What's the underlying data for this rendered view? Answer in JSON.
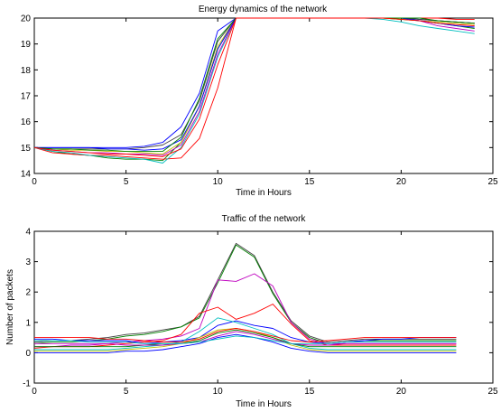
{
  "chart_data": [
    {
      "type": "line",
      "title": "Energy dynamics of the network",
      "xlabel": "Time in Hours",
      "ylabel": "",
      "xlim": [
        0,
        25
      ],
      "ylim": [
        14,
        20
      ],
      "xticks": [
        0,
        5,
        10,
        15,
        20,
        25
      ],
      "yticks": [
        14,
        15,
        16,
        17,
        18,
        19,
        20
      ],
      "grid": false,
      "legend": "none",
      "x": [
        0,
        1,
        2,
        3,
        4,
        5,
        6,
        7,
        8,
        9,
        10,
        11,
        12,
        13,
        14,
        15,
        16,
        17,
        18,
        19,
        20,
        21,
        22,
        23,
        24
      ],
      "series": [
        {
          "color": "#0000ff",
          "values": [
            15,
            15,
            15,
            15,
            15,
            15,
            15.05,
            15.2,
            15.8,
            17.1,
            19.5,
            20,
            20,
            20,
            20,
            20,
            20,
            20,
            20,
            20,
            20,
            19.95,
            19.9,
            19.85,
            19.8
          ]
        },
        {
          "color": "#008000",
          "values": [
            15,
            14.85,
            14.75,
            14.7,
            14.6,
            14.55,
            14.55,
            14.5,
            15.2,
            16.6,
            18.8,
            20,
            20,
            20,
            20,
            20,
            20,
            20,
            20,
            20,
            19.95,
            19.9,
            19.8,
            19.7,
            19.6
          ]
        },
        {
          "color": "#ff0000",
          "values": [
            15,
            14.8,
            14.75,
            14.7,
            14.7,
            14.65,
            14.6,
            14.55,
            14.6,
            15.35,
            17.3,
            20,
            20,
            20,
            20,
            20,
            20,
            20,
            20,
            20,
            20,
            20,
            20,
            19.95,
            19.95
          ]
        },
        {
          "color": "#00bfbf",
          "values": [
            15,
            14.85,
            14.8,
            14.7,
            14.65,
            14.6,
            14.55,
            14.4,
            15.0,
            16.3,
            18.5,
            20,
            20,
            20,
            20,
            20,
            20,
            20,
            20,
            19.95,
            19.85,
            19.7,
            19.6,
            19.5,
            19.4
          ]
        },
        {
          "color": "#bf00bf",
          "values": [
            15,
            14.9,
            14.85,
            14.8,
            14.8,
            14.75,
            14.75,
            14.7,
            15.1,
            16.4,
            18.6,
            20,
            20,
            20,
            20,
            20,
            20,
            20,
            20,
            20,
            20,
            19.9,
            19.7,
            19.6,
            19.5
          ]
        },
        {
          "color": "#bfbf00",
          "values": [
            15,
            14.95,
            14.9,
            14.9,
            14.85,
            14.85,
            14.8,
            14.75,
            15.2,
            16.6,
            18.9,
            20,
            20,
            20,
            20,
            20,
            20,
            20,
            20,
            20,
            19.95,
            19.9,
            19.85,
            19.8,
            19.75
          ]
        },
        {
          "color": "#404040",
          "values": [
            15,
            14.95,
            14.95,
            14.95,
            14.95,
            14.95,
            15.0,
            15.1,
            15.5,
            16.8,
            19.1,
            20,
            20,
            20,
            20,
            20,
            20,
            20,
            20,
            20,
            20,
            19.95,
            19.9,
            19.85,
            19.8
          ]
        },
        {
          "color": "#0000ff",
          "values": [
            15,
            15,
            15,
            15,
            14.95,
            14.95,
            14.9,
            14.95,
            15.3,
            16.6,
            18.8,
            20,
            20,
            20,
            20,
            20,
            20,
            20,
            20,
            20,
            20,
            19.9,
            19.8,
            19.7,
            19.65
          ]
        },
        {
          "color": "#008000",
          "values": [
            15,
            14.95,
            14.95,
            14.9,
            14.9,
            14.85,
            14.85,
            14.85,
            15.4,
            16.9,
            19.2,
            20,
            20,
            20,
            20,
            20,
            20,
            20,
            20,
            20,
            20,
            20,
            19.9,
            19.85,
            19.8
          ]
        },
        {
          "color": "#ff0000",
          "values": [
            15,
            14.9,
            14.85,
            14.8,
            14.75,
            14.75,
            14.7,
            14.65,
            14.95,
            16.1,
            18.2,
            20,
            20,
            20,
            20,
            20,
            20,
            20,
            20,
            20,
            19.95,
            19.9,
            19.8,
            19.75,
            19.7
          ]
        }
      ]
    },
    {
      "type": "line",
      "title": "Traffic of the network",
      "xlabel": "Time in Hours",
      "ylabel": "Number of packets",
      "xlim": [
        0,
        25
      ],
      "ylim": [
        -1,
        4
      ],
      "xticks": [
        0,
        5,
        10,
        15,
        20,
        25
      ],
      "yticks": [
        -1,
        0,
        1,
        2,
        3,
        4
      ],
      "grid": false,
      "legend": "none",
      "x": [
        0,
        1,
        2,
        3,
        4,
        5,
        6,
        7,
        8,
        9,
        10,
        11,
        12,
        13,
        14,
        15,
        16,
        17,
        18,
        19,
        20,
        21,
        22,
        23
      ],
      "series": [
        {
          "color": "#404040",
          "values": [
            0.35,
            0.4,
            0.4,
            0.45,
            0.5,
            0.6,
            0.65,
            0.75,
            0.85,
            1.2,
            2.4,
            3.6,
            3.2,
            2.0,
            1.05,
            0.55,
            0.35,
            0.4,
            0.45,
            0.45,
            0.45,
            0.45,
            0.45,
            0.45
          ]
        },
        {
          "color": "#008000",
          "values": [
            0.3,
            0.35,
            0.35,
            0.4,
            0.45,
            0.55,
            0.6,
            0.7,
            0.85,
            1.15,
            2.3,
            3.55,
            3.15,
            1.95,
            1.0,
            0.5,
            0.3,
            0.35,
            0.4,
            0.4,
            0.4,
            0.4,
            0.4,
            0.4
          ]
        },
        {
          "color": "#bf00bf",
          "values": [
            0.2,
            0.2,
            0.25,
            0.25,
            0.3,
            0.35,
            0.4,
            0.45,
            0.55,
            0.8,
            2.4,
            2.35,
            2.6,
            2.2,
            1.0,
            0.45,
            0.3,
            0.3,
            0.3,
            0.3,
            0.3,
            0.3,
            0.3,
            0.3
          ]
        },
        {
          "color": "#ff0000",
          "values": [
            0.15,
            0.2,
            0.2,
            0.2,
            0.25,
            0.3,
            0.35,
            0.4,
            0.6,
            1.3,
            1.5,
            1.1,
            1.3,
            1.6,
            0.95,
            0.4,
            0.25,
            0.25,
            0.25,
            0.25,
            0.25,
            0.25,
            0.25,
            0.25
          ]
        },
        {
          "color": "#0000ff",
          "values": [
            0.45,
            0.45,
            0.4,
            0.4,
            0.4,
            0.4,
            0.3,
            0.35,
            0.4,
            0.5,
            0.9,
            1.05,
            0.9,
            0.8,
            0.5,
            0.35,
            0.3,
            0.35,
            0.4,
            0.45,
            0.45,
            0.5,
            0.5,
            0.5
          ]
        },
        {
          "color": "#00bfbf",
          "values": [
            0.1,
            0.1,
            0.1,
            0.1,
            0.1,
            0.15,
            0.2,
            0.25,
            0.35,
            0.7,
            1.15,
            1.0,
            0.8,
            0.6,
            0.3,
            0.15,
            0.1,
            0.1,
            0.1,
            0.1,
            0.1,
            0.1,
            0.1,
            0.1
          ]
        },
        {
          "color": "#bfbf00",
          "values": [
            0.05,
            0.05,
            0.05,
            0.05,
            0.05,
            0.1,
            0.15,
            0.2,
            0.3,
            0.5,
            0.75,
            0.8,
            0.7,
            0.5,
            0.25,
            0.1,
            0.05,
            0.05,
            0.05,
            0.05,
            0.05,
            0.05,
            0.05,
            0.05
          ]
        },
        {
          "color": "#ff0000",
          "values": [
            0.5,
            0.5,
            0.5,
            0.5,
            0.45,
            0.45,
            0.4,
            0.35,
            0.35,
            0.45,
            0.7,
            0.8,
            0.7,
            0.55,
            0.4,
            0.35,
            0.4,
            0.45,
            0.5,
            0.5,
            0.5,
            0.5,
            0.5,
            0.5
          ]
        },
        {
          "color": "#008000",
          "values": [
            0.2,
            0.2,
            0.2,
            0.2,
            0.2,
            0.2,
            0.25,
            0.3,
            0.3,
            0.4,
            0.65,
            0.75,
            0.65,
            0.5,
            0.3,
            0.2,
            0.2,
            0.2,
            0.2,
            0.2,
            0.2,
            0.2,
            0.2,
            0.2
          ]
        },
        {
          "color": "#bf00bf",
          "values": [
            0.3,
            0.3,
            0.3,
            0.3,
            0.3,
            0.25,
            0.25,
            0.25,
            0.3,
            0.35,
            0.55,
            0.7,
            0.6,
            0.45,
            0.3,
            0.25,
            0.25,
            0.3,
            0.3,
            0.3,
            0.3,
            0.3,
            0.3,
            0.3
          ]
        },
        {
          "color": "#0000ff",
          "values": [
            0.0,
            0.0,
            0.0,
            0.0,
            0.0,
            0.05,
            0.05,
            0.1,
            0.2,
            0.3,
            0.5,
            0.6,
            0.5,
            0.35,
            0.15,
            0.05,
            0.0,
            0.0,
            0.0,
            0.0,
            0.0,
            0.0,
            0.0,
            0.0
          ]
        },
        {
          "color": "#00bfbf",
          "values": [
            0.4,
            0.4,
            0.4,
            0.35,
            0.35,
            0.35,
            0.3,
            0.3,
            0.3,
            0.35,
            0.45,
            0.55,
            0.5,
            0.4,
            0.3,
            0.3,
            0.3,
            0.35,
            0.35,
            0.35,
            0.35,
            0.35,
            0.35,
            0.35
          ]
        }
      ]
    }
  ]
}
